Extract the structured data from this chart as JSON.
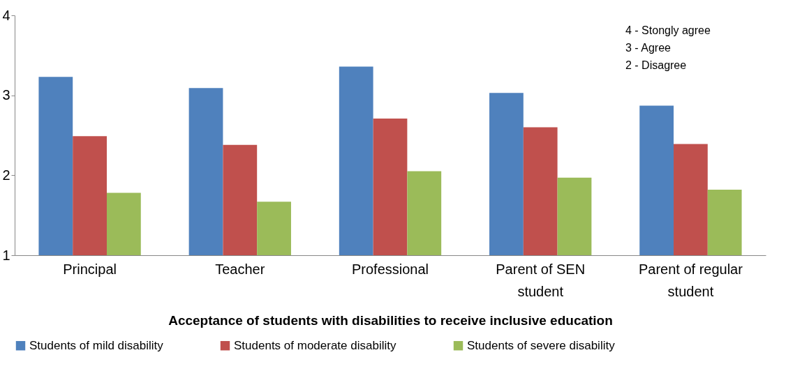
{
  "chart_data": {
    "type": "bar",
    "xlabel": "Acceptance of students with disabilities to receive inclusive education",
    "categories": [
      "Principal",
      "Teacher",
      "Professional",
      "Parent of SEN student",
      "Parent of regular student"
    ],
    "series": [
      {
        "name": "Students of mild disability",
        "color": "#4f81bd",
        "values": [
          3.23,
          3.09,
          3.36,
          3.03,
          2.87
        ]
      },
      {
        "name": "Students of moderate disability",
        "color": "#c0504d",
        "values": [
          2.49,
          2.38,
          2.71,
          2.6,
          2.39
        ]
      },
      {
        "name": "Students of severe disability",
        "color": "#9bbb59",
        "values": [
          1.78,
          1.67,
          2.05,
          1.97,
          1.82
        ]
      }
    ],
    "ylim": [
      1,
      4
    ],
    "yticks": [
      1,
      2,
      3,
      4
    ],
    "grid": false,
    "legend": "bottom",
    "annotations": [
      "4 - Stongly agree",
      "3 - Agree",
      "2 - Disagree"
    ]
  }
}
